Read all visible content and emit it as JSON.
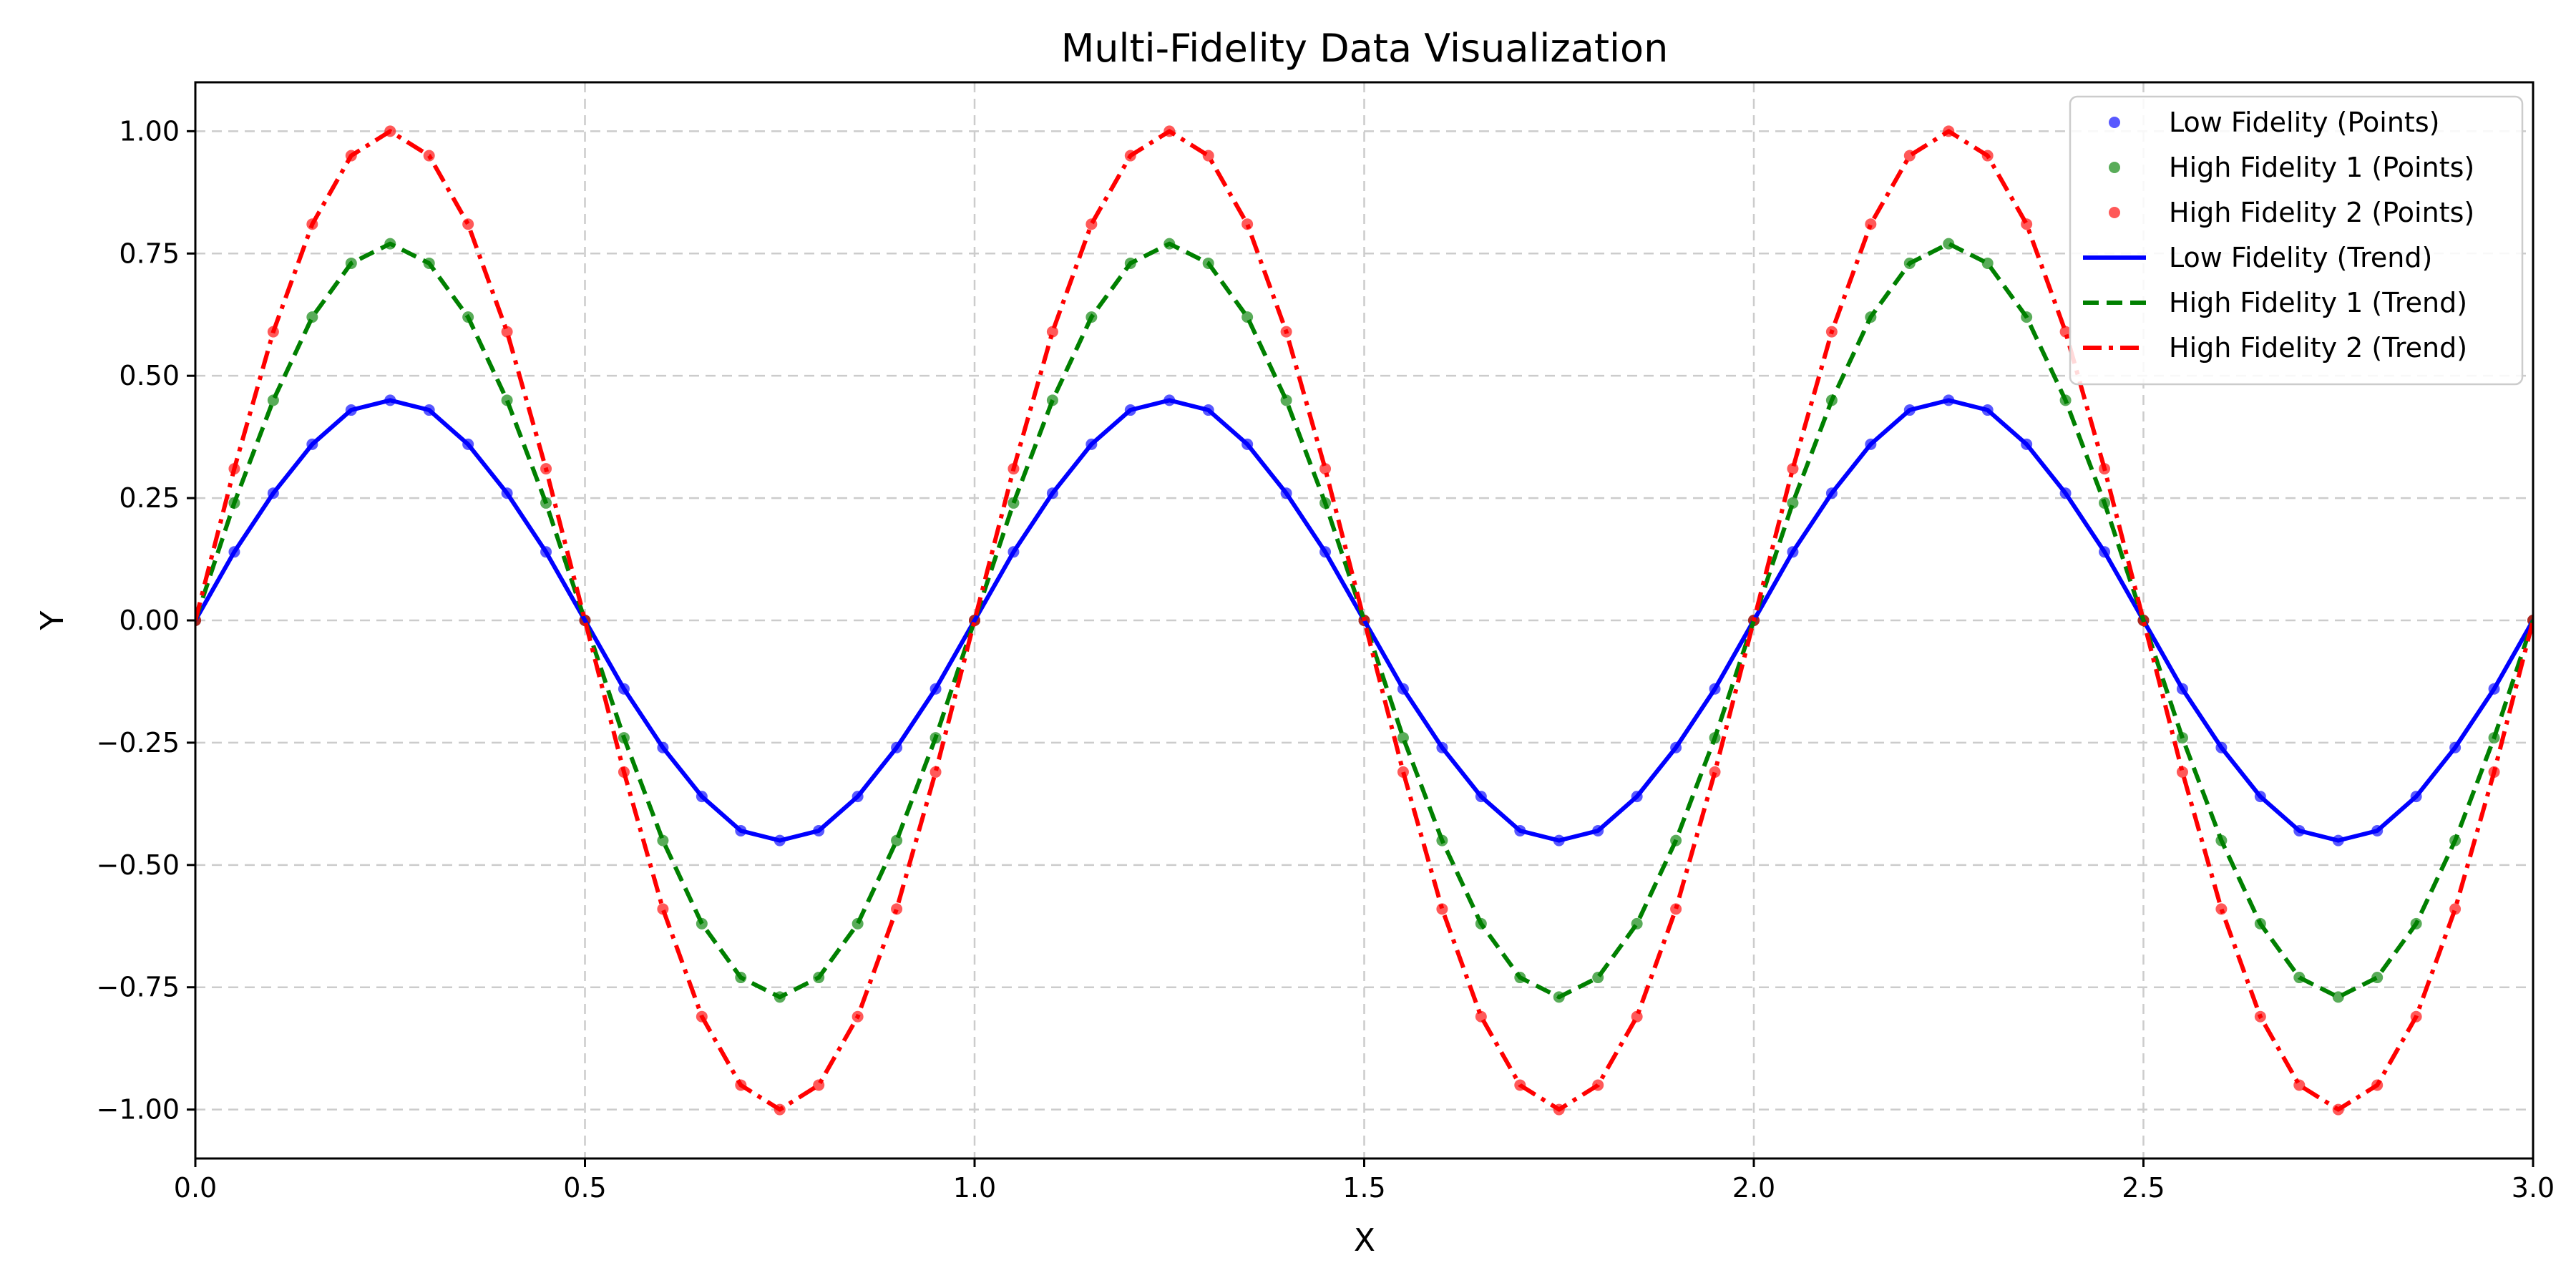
{
  "chart_data": {
    "type": "line",
    "title": "Multi-Fidelity Data Visualization",
    "xlabel": "X",
    "ylabel": "Y",
    "xlim": [
      0.0,
      3.0
    ],
    "ylim": [
      -1.1,
      1.1
    ],
    "grid": true,
    "legend_position": "top-right",
    "x_ticks": [
      0.0,
      0.5,
      1.0,
      1.5,
      2.0,
      2.5,
      3.0
    ],
    "x_tick_labels": [
      "0.0",
      "0.5",
      "1.0",
      "1.5",
      "2.0",
      "2.5",
      "3.0"
    ],
    "y_ticks": [
      -1.0,
      -0.75,
      -0.5,
      -0.25,
      0.0,
      0.25,
      0.5,
      0.75,
      1.0
    ],
    "y_tick_labels": [
      "−1.00",
      "−0.75",
      "−0.50",
      "−0.25",
      "0.00",
      "0.25",
      "0.50",
      "0.75",
      "1.00"
    ],
    "x": [
      0.0,
      0.05,
      0.1,
      0.15,
      0.2,
      0.25,
      0.3,
      0.35,
      0.4,
      0.45,
      0.5,
      0.55,
      0.6,
      0.65,
      0.7,
      0.75,
      0.8,
      0.85,
      0.9,
      0.95,
      1.0,
      1.05,
      1.1,
      1.15,
      1.2,
      1.25,
      1.3,
      1.35,
      1.4,
      1.45,
      1.5,
      1.55,
      1.6,
      1.65,
      1.7,
      1.75,
      1.8,
      1.85,
      1.9,
      1.95,
      2.0,
      2.05,
      2.1,
      2.15,
      2.2,
      2.25,
      2.3,
      2.35,
      2.4,
      2.45,
      2.5,
      2.55,
      2.6,
      2.65,
      2.7,
      2.75,
      2.8,
      2.85,
      2.9,
      2.95,
      3.0
    ],
    "series": [
      {
        "name": "Low Fidelity (Points)",
        "kind": "scatter",
        "color": "#0000ff",
        "values": [
          0.0,
          0.14,
          0.26,
          0.36,
          0.43,
          0.45,
          0.43,
          0.36,
          0.26,
          0.14,
          0.0,
          -0.14,
          -0.26,
          -0.36,
          -0.43,
          -0.45,
          -0.43,
          -0.36,
          -0.26,
          -0.14,
          0.0,
          0.14,
          0.26,
          0.36,
          0.43,
          0.45,
          0.43,
          0.36,
          0.26,
          0.14,
          0.0,
          -0.14,
          -0.26,
          -0.36,
          -0.43,
          -0.45,
          -0.43,
          -0.36,
          -0.26,
          -0.14,
          0.0,
          0.14,
          0.26,
          0.36,
          0.43,
          0.45,
          0.43,
          0.36,
          0.26,
          0.14,
          0.0,
          -0.14,
          -0.26,
          -0.36,
          -0.43,
          -0.45,
          -0.43,
          -0.36,
          -0.26,
          -0.14,
          0.0
        ]
      },
      {
        "name": "High Fidelity 1 (Points)",
        "kind": "scatter",
        "color": "#008000",
        "values": [
          0.0,
          0.24,
          0.45,
          0.62,
          0.73,
          0.77,
          0.73,
          0.62,
          0.45,
          0.24,
          0.0,
          -0.24,
          -0.45,
          -0.62,
          -0.73,
          -0.77,
          -0.73,
          -0.62,
          -0.45,
          -0.24,
          0.0,
          0.24,
          0.45,
          0.62,
          0.73,
          0.77,
          0.73,
          0.62,
          0.45,
          0.24,
          0.0,
          -0.24,
          -0.45,
          -0.62,
          -0.73,
          -0.77,
          -0.73,
          -0.62,
          -0.45,
          -0.24,
          0.0,
          0.24,
          0.45,
          0.62,
          0.73,
          0.77,
          0.73,
          0.62,
          0.45,
          0.24,
          0.0,
          -0.24,
          -0.45,
          -0.62,
          -0.73,
          -0.77,
          -0.73,
          -0.62,
          -0.45,
          -0.24,
          0.0
        ]
      },
      {
        "name": "High Fidelity 2 (Points)",
        "kind": "scatter",
        "color": "#ff0000",
        "values": [
          0.0,
          0.31,
          0.59,
          0.81,
          0.95,
          1.0,
          0.95,
          0.81,
          0.59,
          0.31,
          0.0,
          -0.31,
          -0.59,
          -0.81,
          -0.95,
          -1.0,
          -0.95,
          -0.81,
          -0.59,
          -0.31,
          0.0,
          0.31,
          0.59,
          0.81,
          0.95,
          1.0,
          0.95,
          0.81,
          0.59,
          0.31,
          0.0,
          -0.31,
          -0.59,
          -0.81,
          -0.95,
          -1.0,
          -0.95,
          -0.81,
          -0.59,
          -0.31,
          0.0,
          0.31,
          0.59,
          0.81,
          0.95,
          1.0,
          0.95,
          0.81,
          0.59,
          0.31,
          0.0,
          -0.31,
          -0.59,
          -0.81,
          -0.95,
          -1.0,
          -0.95,
          -0.81,
          -0.59,
          -0.31,
          0.0
        ]
      },
      {
        "name": "Low Fidelity (Trend)",
        "kind": "line",
        "color": "#0000ff",
        "line_style": "solid",
        "values": [
          0.0,
          0.14,
          0.26,
          0.36,
          0.43,
          0.45,
          0.43,
          0.36,
          0.26,
          0.14,
          0.0,
          -0.14,
          -0.26,
          -0.36,
          -0.43,
          -0.45,
          -0.43,
          -0.36,
          -0.26,
          -0.14,
          0.0,
          0.14,
          0.26,
          0.36,
          0.43,
          0.45,
          0.43,
          0.36,
          0.26,
          0.14,
          0.0,
          -0.14,
          -0.26,
          -0.36,
          -0.43,
          -0.45,
          -0.43,
          -0.36,
          -0.26,
          -0.14,
          0.0,
          0.14,
          0.26,
          0.36,
          0.43,
          0.45,
          0.43,
          0.36,
          0.26,
          0.14,
          0.0,
          -0.14,
          -0.26,
          -0.36,
          -0.43,
          -0.45,
          -0.43,
          -0.36,
          -0.26,
          -0.14,
          0.0
        ]
      },
      {
        "name": "High Fidelity 1 (Trend)",
        "kind": "line",
        "color": "#008000",
        "line_style": "dashed",
        "values": [
          0.0,
          0.24,
          0.45,
          0.62,
          0.73,
          0.77,
          0.73,
          0.62,
          0.45,
          0.24,
          0.0,
          -0.24,
          -0.45,
          -0.62,
          -0.73,
          -0.77,
          -0.73,
          -0.62,
          -0.45,
          -0.24,
          0.0,
          0.24,
          0.45,
          0.62,
          0.73,
          0.77,
          0.73,
          0.62,
          0.45,
          0.24,
          0.0,
          -0.24,
          -0.45,
          -0.62,
          -0.73,
          -0.77,
          -0.73,
          -0.62,
          -0.45,
          -0.24,
          0.0,
          0.24,
          0.45,
          0.62,
          0.73,
          0.77,
          0.73,
          0.62,
          0.45,
          0.24,
          0.0,
          -0.24,
          -0.45,
          -0.62,
          -0.73,
          -0.77,
          -0.73,
          -0.62,
          -0.45,
          -0.24,
          0.0
        ]
      },
      {
        "name": "High Fidelity 2 (Trend)",
        "kind": "line",
        "color": "#ff0000",
        "line_style": "dashdot",
        "values": [
          0.0,
          0.31,
          0.59,
          0.81,
          0.95,
          1.0,
          0.95,
          0.81,
          0.59,
          0.31,
          0.0,
          -0.31,
          -0.59,
          -0.81,
          -0.95,
          -1.0,
          -0.95,
          -0.81,
          -0.59,
          -0.31,
          0.0,
          0.31,
          0.59,
          0.81,
          0.95,
          1.0,
          0.95,
          0.81,
          0.59,
          0.31,
          0.0,
          -0.31,
          -0.59,
          -0.81,
          -0.95,
          -1.0,
          -0.95,
          -0.81,
          -0.59,
          -0.31,
          0.0,
          0.31,
          0.59,
          0.81,
          0.95,
          1.0,
          0.95,
          0.81,
          0.59,
          0.31,
          0.0,
          -0.31,
          -0.59,
          -0.81,
          -0.95,
          -1.0,
          -0.95,
          -0.81,
          -0.59,
          -0.31,
          0.0
        ]
      }
    ]
  }
}
